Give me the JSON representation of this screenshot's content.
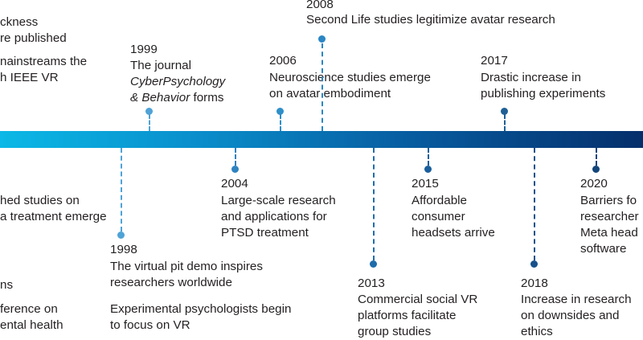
{
  "colors": {
    "bar_start": "#0bb8e6",
    "bar_end": "#052f6b",
    "text": "#231f20"
  },
  "timeline": {
    "cut_above": [
      {
        "lines": [
          "ckness",
          "re published"
        ]
      },
      {
        "lines": [
          "nainstreams the",
          "h IEEE VR"
        ]
      }
    ],
    "cut_below": [
      {
        "lines": [
          "hed studies on",
          "a treatment emerge"
        ]
      },
      {
        "lines": [
          "ns"
        ]
      },
      {
        "lines": [
          "ference on",
          "ental health"
        ]
      }
    ],
    "events": [
      {
        "year": "1999",
        "lines": [
          "The journal",
          "CyberPsychology",
          "& Behavior forms"
        ],
        "color": "#4fa3d6"
      },
      {
        "year": "2006",
        "lines": [
          "Neuroscience studies emerge",
          "on avatar embodiment"
        ],
        "color": "#2f8fc9"
      },
      {
        "year": "2008",
        "lines": [
          "Second Life studies legitimize avatar research"
        ],
        "color": "#2a86c4"
      },
      {
        "year": "2017",
        "lines": [
          "Drastic increase in",
          "publishing experiments"
        ],
        "color": "#1f5f95"
      },
      {
        "year": "1998",
        "lines": [
          "The virtual pit demo inspires",
          "researchers worldwide"
        ],
        "color": "#4fa3d6",
        "extra": [
          "Experimental psychologists begin",
          "to focus on VR"
        ]
      },
      {
        "year": "2004",
        "lines": [
          "Large-scale research",
          "and applications for",
          "PTSD treatment"
        ],
        "color": "#2e82c0"
      },
      {
        "year": "2013",
        "lines": [
          "Commercial social VR",
          "platforms facilitate",
          "group studies"
        ],
        "color": "#1e6cab"
      },
      {
        "year": "2015",
        "lines": [
          "Affordable",
          "consumer",
          "headsets arrive"
        ],
        "color": "#1a5f9c"
      },
      {
        "year": "2018",
        "lines": [
          "Increase in research",
          "on downsides and",
          "ethics"
        ],
        "color": "#17518a"
      },
      {
        "year": "2020",
        "lines": [
          "Barriers fo",
          "researcher",
          "Meta head",
          "software"
        ],
        "color": "#12457b"
      }
    ]
  }
}
